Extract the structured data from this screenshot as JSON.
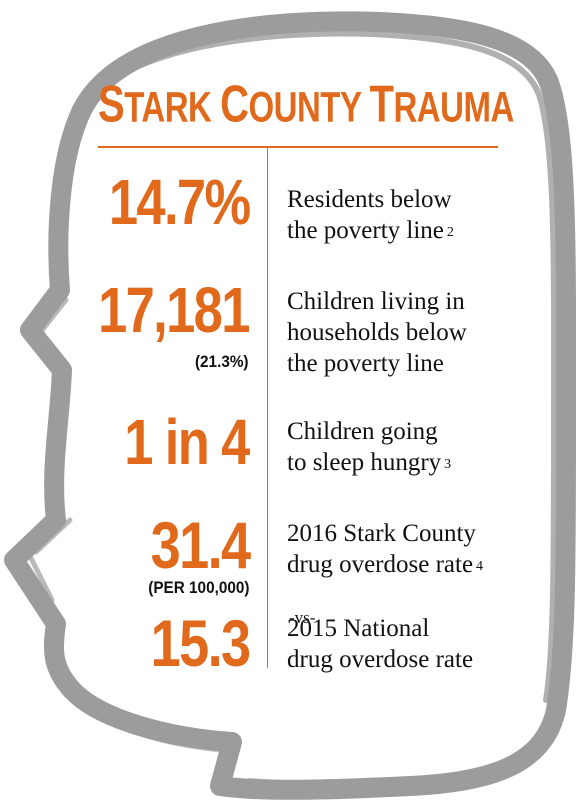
{
  "title": {
    "w1_cap": "S",
    "w1_rest": "TARK",
    "w2_cap": "C",
    "w2_rest": "OUNTY",
    "w3_cap": "T",
    "w3_rest": "RAUMA"
  },
  "colors": {
    "accent": "#e0691c",
    "bubble": "#9c9c9c",
    "text": "#111111"
  },
  "rows": [
    {
      "stat": "14.7%",
      "line1": "Residents below",
      "line2": "the poverty line",
      "ref": "2"
    },
    {
      "stat": "17,181",
      "sub": "(21.3%)",
      "line1": "Children living in",
      "line2": "households below",
      "line3": "the poverty line"
    },
    {
      "stat": "1 in 4",
      "line1": "Children going",
      "line2": "to sleep hungry",
      "ref": "3"
    },
    {
      "stat": "31.4",
      "sub": "(PER 100,000)",
      "line1": "2016 Stark County",
      "line2": "drug overdose rate",
      "ref": "4"
    },
    {
      "stat": "15.3",
      "line1": "2015 National",
      "line2": "drug overdose rate"
    }
  ],
  "vs": "-vs-"
}
